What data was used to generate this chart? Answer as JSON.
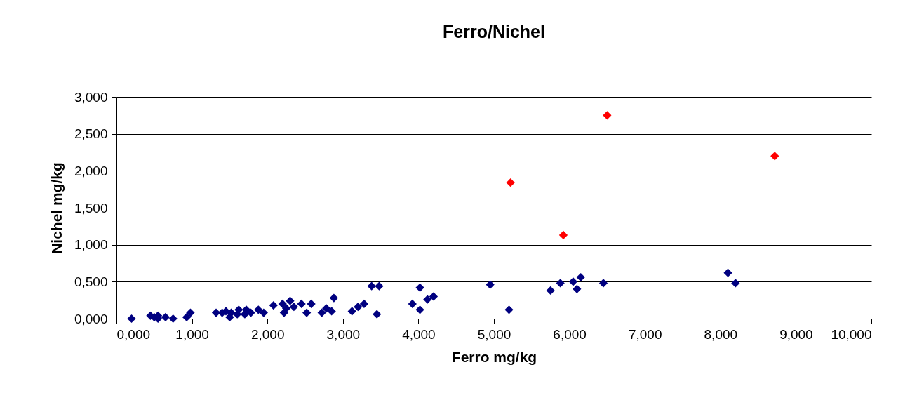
{
  "chart_data": {
    "type": "scatter",
    "title": "Ferro/Nichel",
    "xlabel": "Ferro mg/kg",
    "ylabel": "Nichel mg/kg",
    "xlim": [
      0,
      10
    ],
    "ylim": [
      0,
      3
    ],
    "xticks": [
      {
        "value": 0,
        "label": "0,000"
      },
      {
        "value": 1,
        "label": "1,000"
      },
      {
        "value": 2,
        "label": "2,000"
      },
      {
        "value": 3,
        "label": "3,000"
      },
      {
        "value": 4,
        "label": "4,000"
      },
      {
        "value": 5,
        "label": "5,000"
      },
      {
        "value": 6,
        "label": "6,000"
      },
      {
        "value": 7,
        "label": "7,000"
      },
      {
        "value": 8,
        "label": "8,000"
      },
      {
        "value": 9,
        "label": "9,000"
      },
      {
        "value": 10,
        "label": "10,000"
      }
    ],
    "yticks": [
      {
        "value": 0,
        "label": "0,000"
      },
      {
        "value": 0.5,
        "label": "0,500"
      },
      {
        "value": 1,
        "label": "1,000"
      },
      {
        "value": 1.5,
        "label": "1,500"
      },
      {
        "value": 2,
        "label": "2,000"
      },
      {
        "value": 2.5,
        "label": "2,500"
      },
      {
        "value": 3,
        "label": "3,000"
      }
    ],
    "grid": "y",
    "marker": "diamond",
    "series": [
      {
        "color": "#000080",
        "x": [
          0.2,
          0.45,
          0.5,
          0.55,
          0.55,
          0.65,
          0.75,
          0.93,
          0.98,
          1.32,
          1.4,
          1.45,
          1.5,
          1.52,
          1.6,
          1.62,
          1.7,
          1.72,
          1.78,
          1.88,
          1.95,
          2.08,
          2.2,
          2.22,
          2.25,
          2.3,
          2.35,
          2.45,
          2.52,
          2.58,
          2.72,
          2.78,
          2.85,
          2.88,
          3.12,
          3.2,
          3.28,
          3.38,
          3.45,
          3.48,
          3.92,
          4.02,
          4.02,
          4.12,
          4.2,
          4.95,
          5.2,
          5.75,
          5.88,
          6.05,
          6.1,
          6.15,
          6.45,
          8.1,
          8.2
        ],
        "values": [
          0.0,
          0.04,
          0.02,
          0.04,
          0.0,
          0.02,
          0.0,
          0.02,
          0.08,
          0.08,
          0.08,
          0.1,
          0.02,
          0.08,
          0.06,
          0.12,
          0.06,
          0.12,
          0.08,
          0.12,
          0.08,
          0.18,
          0.2,
          0.08,
          0.14,
          0.24,
          0.16,
          0.2,
          0.08,
          0.2,
          0.08,
          0.14,
          0.1,
          0.28,
          0.1,
          0.16,
          0.2,
          0.44,
          0.06,
          0.44,
          0.2,
          0.42,
          0.12,
          0.26,
          0.3,
          0.46,
          0.12,
          0.38,
          0.48,
          0.5,
          0.4,
          0.56,
          0.48,
          0.62,
          0.48
        ]
      },
      {
        "color": "#ff0000",
        "x": [
          5.22,
          5.92,
          6.5,
          8.72
        ],
        "values": [
          1.84,
          1.13,
          2.75,
          2.2
        ]
      }
    ]
  }
}
